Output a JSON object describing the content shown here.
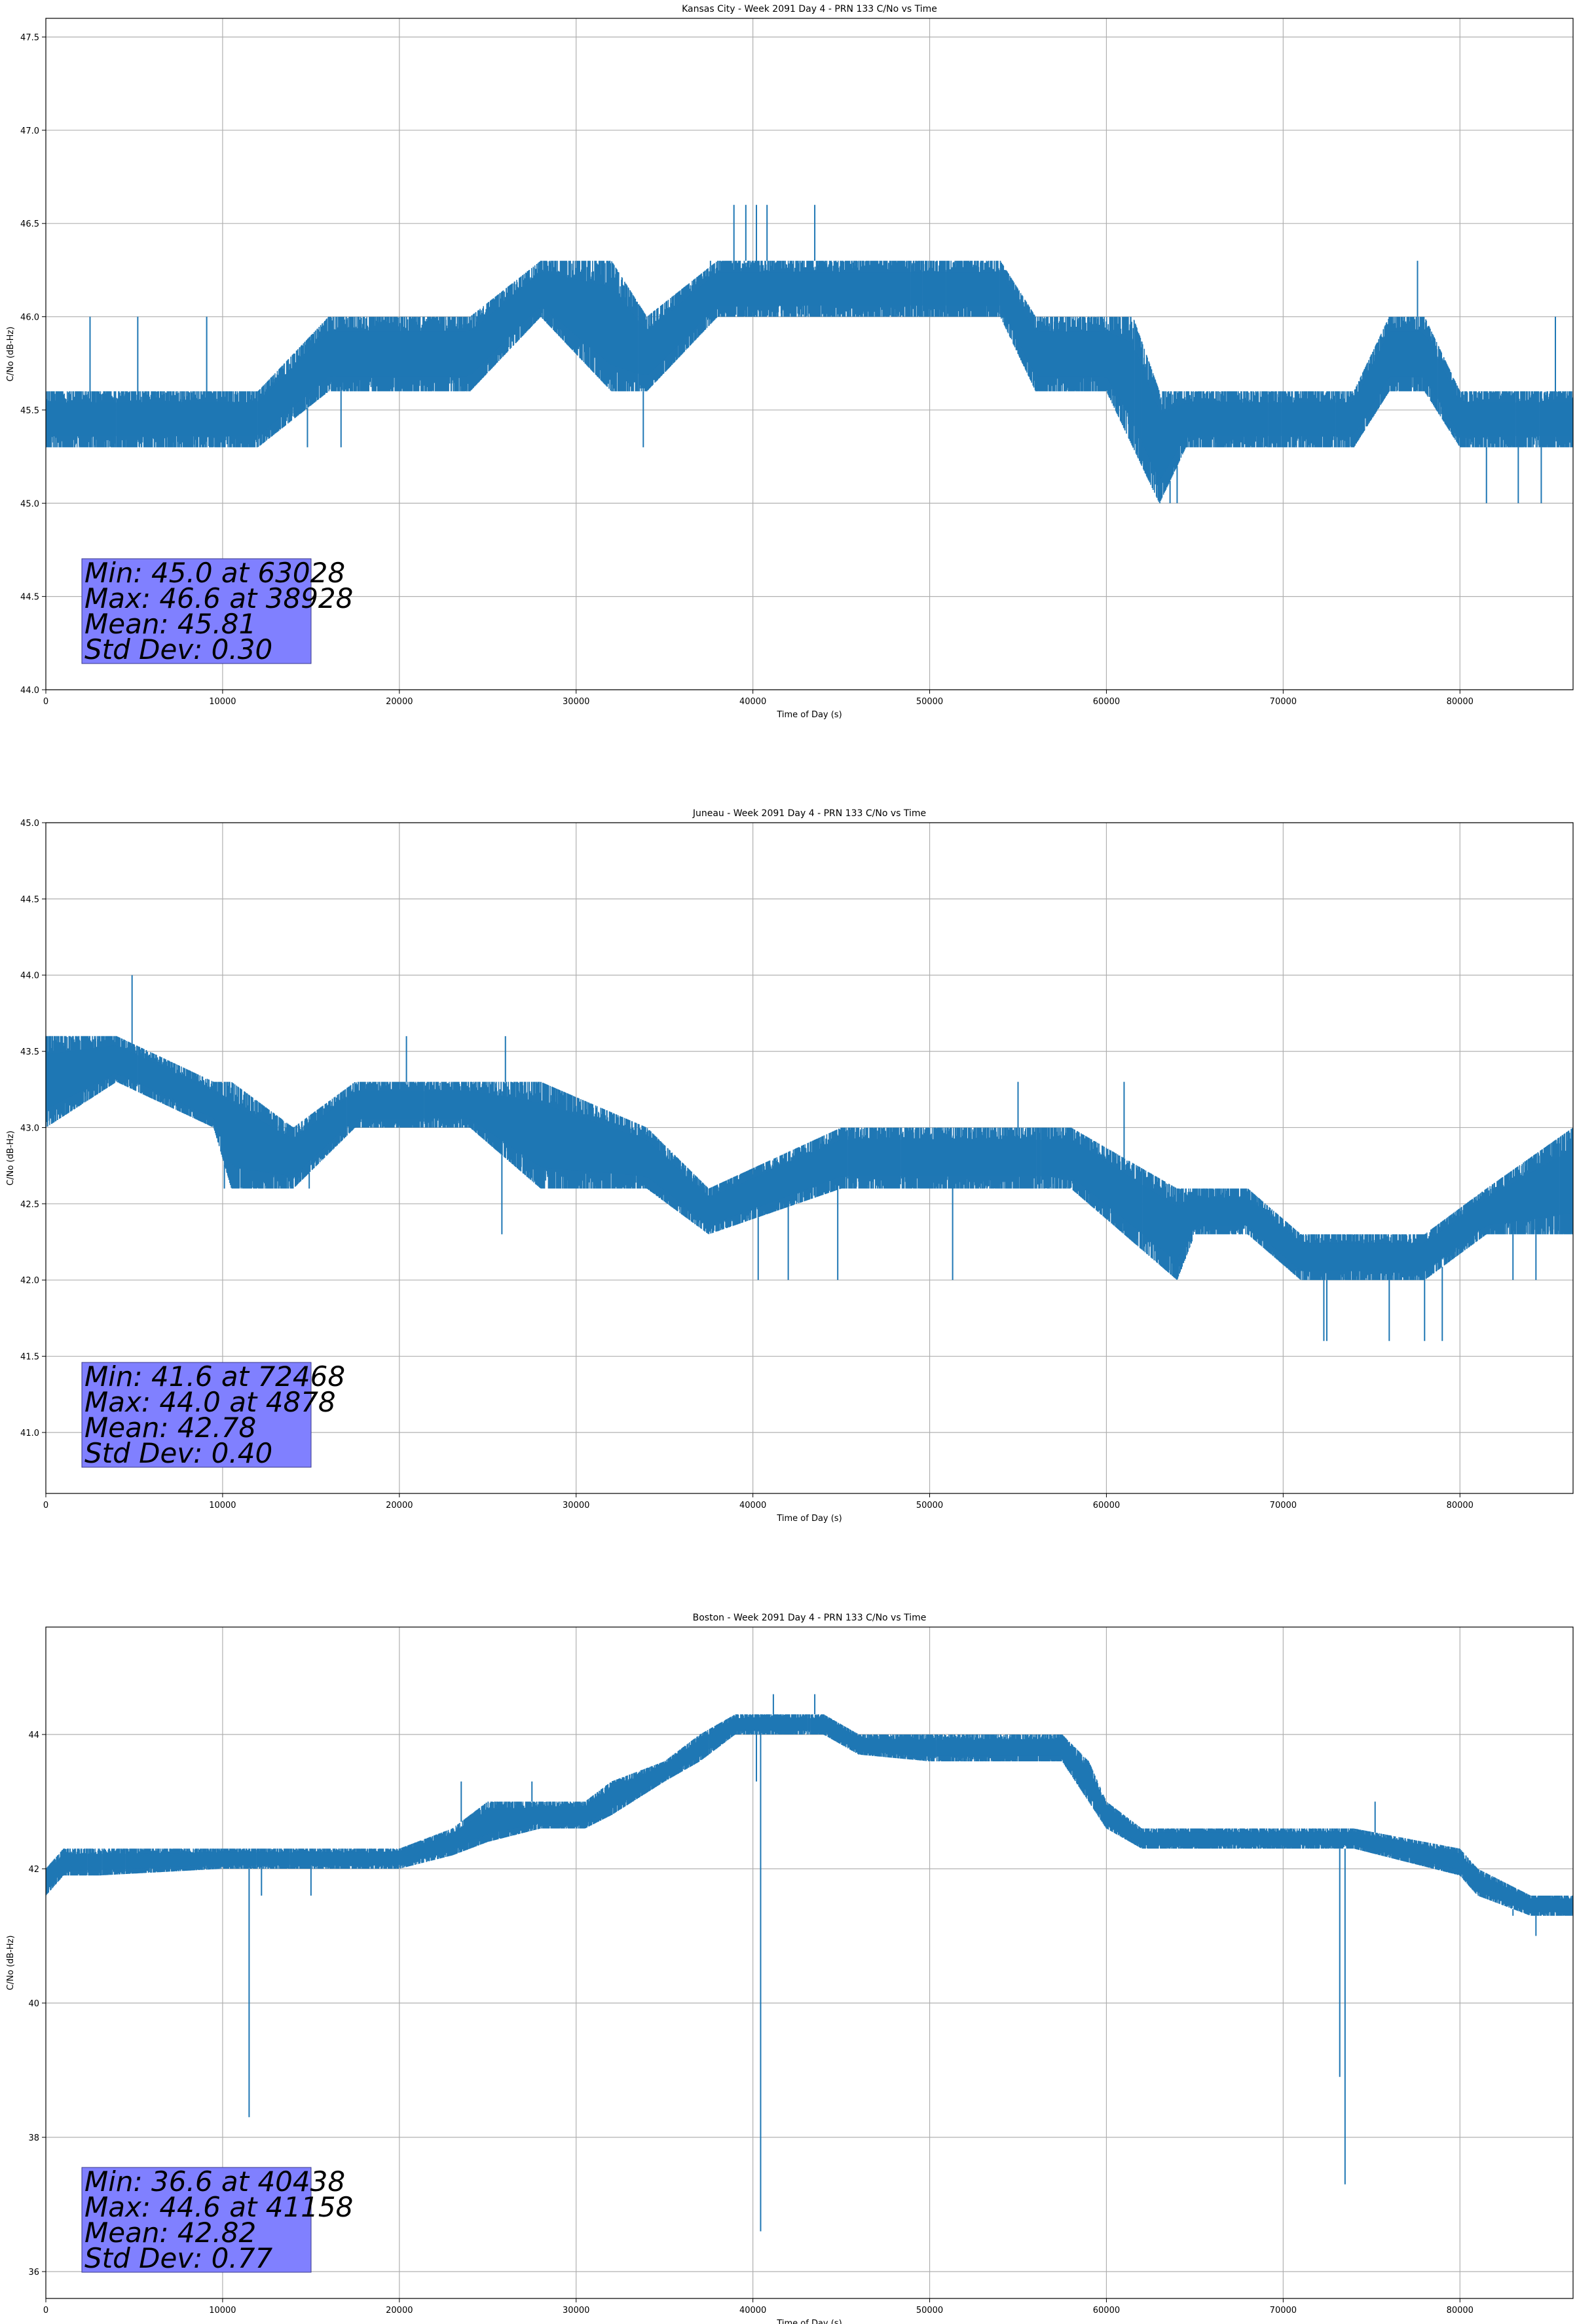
{
  "page": {
    "background": "#ffffff",
    "line_color": "#1f77b4",
    "grid_color": "#b0b0b0",
    "stats_box_color": "#8080ff"
  },
  "chart_data": [
    {
      "type": "line",
      "title": "Kansas City - Week 2091 Day 4 - PRN 133 C/No vs Time",
      "xlabel": "Time of Day (s)",
      "ylabel": "C/No (dB-Hz)",
      "xlim": [
        0,
        86400
      ],
      "ylim": [
        44.0,
        47.6
      ],
      "xticks": [
        0,
        10000,
        20000,
        30000,
        40000,
        50000,
        60000,
        70000,
        80000
      ],
      "yticks": [
        44.0,
        44.5,
        45.0,
        45.5,
        46.0,
        46.5,
        47.0,
        47.5
      ],
      "ytick_decimals": 1,
      "grid": true,
      "series": [
        {
          "band_x": [
            0,
            4000,
            8000,
            12000,
            16000,
            20000,
            24000,
            28000,
            32000,
            34000,
            38000,
            42000,
            46000,
            50000,
            54000,
            56000,
            60000,
            61500,
            63000,
            64500,
            67000,
            70000,
            74000,
            76000,
            78000,
            80000,
            83000,
            86400
          ],
          "band_low": [
            45.3,
            45.3,
            45.3,
            45.3,
            45.6,
            45.6,
            45.6,
            46.0,
            45.6,
            45.6,
            46.0,
            46.0,
            46.0,
            46.0,
            46.0,
            45.6,
            45.6,
            45.3,
            45.0,
            45.3,
            45.3,
            45.3,
            45.3,
            45.6,
            45.6,
            45.3,
            45.3,
            45.3
          ],
          "band_high": [
            45.6,
            45.6,
            45.6,
            45.6,
            46.0,
            46.0,
            46.0,
            46.3,
            46.3,
            46.0,
            46.3,
            46.3,
            46.3,
            46.3,
            46.3,
            46.0,
            46.0,
            46.0,
            45.6,
            45.6,
            45.6,
            45.6,
            45.6,
            46.0,
            46.0,
            45.6,
            45.6,
            45.6
          ],
          "spikes": [
            [
              2500,
              46.0
            ],
            [
              5200,
              46.0
            ],
            [
              9100,
              46.0
            ],
            [
              14800,
              45.3
            ],
            [
              16700,
              45.3
            ],
            [
              18500,
              46.0
            ],
            [
              33800,
              45.3
            ],
            [
              37600,
              46.3
            ],
            [
              38928,
              46.6
            ],
            [
              39600,
              46.6
            ],
            [
              40200,
              46.6
            ],
            [
              40800,
              46.6
            ],
            [
              43500,
              46.6
            ],
            [
              48500,
              46.3
            ],
            [
              62000,
              45.3
            ],
            [
              63028,
              45.0
            ],
            [
              63600,
              45.0
            ],
            [
              64000,
              45.0
            ],
            [
              77600,
              46.3
            ],
            [
              81500,
              45.0
            ],
            [
              83300,
              45.0
            ],
            [
              84600,
              45.0
            ],
            [
              85400,
              46.0
            ]
          ]
        }
      ],
      "stats": [
        "Min: 45.0 at 63028",
        "Max: 46.6 at 38928",
        "Mean: 45.81",
        "Std Dev: 0.30"
      ]
    },
    {
      "type": "line",
      "title": "Juneau - Week 2091 Day 4 - PRN 133 C/No vs Time",
      "xlabel": "Time of Day (s)",
      "ylabel": "C/No (dB-Hz)",
      "xlim": [
        0,
        86400
      ],
      "ylim": [
        40.6,
        45.0
      ],
      "xticks": [
        0,
        10000,
        20000,
        30000,
        40000,
        50000,
        60000,
        70000,
        80000
      ],
      "yticks": [
        41.0,
        41.5,
        42.0,
        42.5,
        43.0,
        43.5,
        44.0,
        44.5,
        45.0
      ],
      "ytick_decimals": 1,
      "grid": true,
      "series": [
        {
          "band_x": [
            0,
            4000,
            9500,
            10500,
            14000,
            17500,
            24000,
            28000,
            34000,
            37500,
            45000,
            49000,
            54000,
            58000,
            64000,
            65000,
            68000,
            71000,
            74000,
            78000,
            81500,
            86400
          ],
          "band_low": [
            43.0,
            43.3,
            43.0,
            42.6,
            42.6,
            43.0,
            43.0,
            42.6,
            42.6,
            42.3,
            42.6,
            42.6,
            42.6,
            42.6,
            42.0,
            42.3,
            42.3,
            42.0,
            42.0,
            42.0,
            42.3,
            42.3
          ],
          "band_high": [
            43.6,
            43.6,
            43.3,
            43.3,
            43.0,
            43.3,
            43.3,
            43.3,
            43.0,
            42.6,
            43.0,
            43.0,
            43.0,
            43.0,
            42.6,
            42.6,
            42.6,
            42.3,
            42.3,
            42.3,
            42.6,
            43.0
          ],
          "spikes": [
            [
              4878,
              44.0
            ],
            [
              10100,
              42.6
            ],
            [
              14900,
              42.6
            ],
            [
              20400,
              43.6
            ],
            [
              25800,
              42.3
            ],
            [
              26000,
              43.6
            ],
            [
              40300,
              42.0
            ],
            [
              42000,
              42.0
            ],
            [
              44800,
              42.0
            ],
            [
              51300,
              42.0
            ],
            [
              55000,
              43.3
            ],
            [
              61000,
              43.3
            ],
            [
              72300,
              41.6
            ],
            [
              76000,
              41.6
            ],
            [
              72468,
              41.6
            ],
            [
              78000,
              41.6
            ],
            [
              79000,
              41.6
            ],
            [
              83000,
              42.0
            ],
            [
              84300,
              42.0
            ]
          ]
        }
      ],
      "stats": [
        "Min: 41.6 at 72468",
        "Max: 44.0 at 4878",
        "Mean: 42.78",
        "Std Dev: 0.40"
      ]
    },
    {
      "type": "line",
      "title": "Boston - Week 2091 Day 4 - PRN 133 C/No vs Time",
      "xlabel": "Time of Day (s)",
      "ylabel": "C/No (dB-Hz)",
      "xlim": [
        0,
        86400
      ],
      "ylim": [
        35.6,
        45.6
      ],
      "xticks": [
        0,
        10000,
        20000,
        30000,
        40000,
        50000,
        60000,
        70000,
        80000
      ],
      "yticks": [
        36,
        38,
        40,
        42,
        44
      ],
      "ytick_decimals": 0,
      "grid": true,
      "series": [
        {
          "band_x": [
            0,
            1000,
            3000,
            10000,
            20000,
            23000,
            25000,
            28000,
            30500,
            32000,
            35000,
            37000,
            39000,
            44000,
            46000,
            50000,
            57500,
            59000,
            60000,
            62000,
            70000,
            74000,
            80000,
            81000,
            84000,
            86400
          ],
          "band_low": [
            41.6,
            41.9,
            41.9,
            42.0,
            42.0,
            42.2,
            42.4,
            42.6,
            42.6,
            42.8,
            43.3,
            43.6,
            44.0,
            44.0,
            43.7,
            43.6,
            43.6,
            43.0,
            42.6,
            42.3,
            42.3,
            42.3,
            41.9,
            41.6,
            41.3,
            41.3
          ],
          "band_high": [
            42.0,
            42.3,
            42.3,
            42.3,
            42.3,
            42.6,
            43.0,
            43.0,
            43.0,
            43.3,
            43.6,
            44.0,
            44.3,
            44.3,
            44.0,
            44.0,
            44.0,
            43.6,
            43.0,
            42.6,
            42.6,
            42.6,
            42.3,
            42.0,
            41.6,
            41.6
          ],
          "spikes": [
            [
              11500,
              38.3
            ],
            [
              12200,
              41.6
            ],
            [
              15000,
              41.6
            ],
            [
              23500,
              43.3
            ],
            [
              27500,
              43.3
            ],
            [
              40438,
              36.6
            ],
            [
              41158,
              44.6
            ],
            [
              43500,
              44.6
            ],
            [
              40200,
              43.3
            ],
            [
              73500,
              37.3
            ],
            [
              73200,
              38.9
            ],
            [
              75200,
              43.0
            ],
            [
              83000,
              41.3
            ],
            [
              84300,
              41.0
            ]
          ]
        }
      ],
      "stats": [
        "Min: 36.6 at 40438",
        "Max: 44.6 at 41158",
        "Mean: 42.82",
        "Std Dev: 0.77"
      ]
    }
  ]
}
